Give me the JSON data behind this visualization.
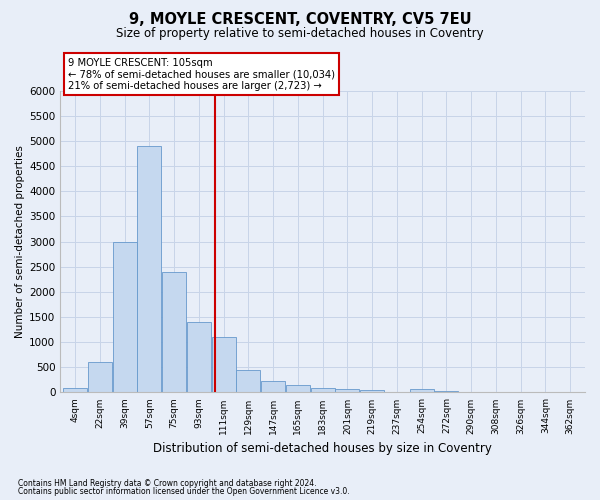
{
  "title": "9, MOYLE CRESCENT, COVENTRY, CV5 7EU",
  "subtitle": "Size of property relative to semi-detached houses in Coventry",
  "xlabel": "Distribution of semi-detached houses by size in Coventry",
  "ylabel": "Number of semi-detached properties",
  "footnote1": "Contains HM Land Registry data © Crown copyright and database right 2024.",
  "footnote2": "Contains public sector information licensed under the Open Government Licence v3.0.",
  "categories": [
    "4sqm",
    "22sqm",
    "39sqm",
    "57sqm",
    "75sqm",
    "93sqm",
    "111sqm",
    "129sqm",
    "147sqm",
    "165sqm",
    "183sqm",
    "201sqm",
    "219sqm",
    "237sqm",
    "254sqm",
    "272sqm",
    "290sqm",
    "308sqm",
    "326sqm",
    "344sqm",
    "362sqm"
  ],
  "values": [
    80,
    600,
    3000,
    4900,
    2400,
    1400,
    1100,
    450,
    230,
    140,
    80,
    60,
    40,
    15,
    60,
    30,
    10,
    5,
    3,
    2,
    1
  ],
  "bar_color": "#c5d8ef",
  "bar_edge_color": "#6699cc",
  "grid_color": "#c8d4e8",
  "background_color": "#e8eef8",
  "property_line_color": "#cc0000",
  "annotation_text": "9 MOYLE CRESCENT: 105sqm\n← 78% of semi-detached houses are smaller (10,034)\n21% of semi-detached houses are larger (2,723) →",
  "annotation_box_color": "#ffffff",
  "annotation_box_edge_color": "#cc0000",
  "ylim": [
    0,
    6000
  ],
  "yticks": [
    0,
    500,
    1000,
    1500,
    2000,
    2500,
    3000,
    3500,
    4000,
    4500,
    5000,
    5500,
    6000
  ]
}
